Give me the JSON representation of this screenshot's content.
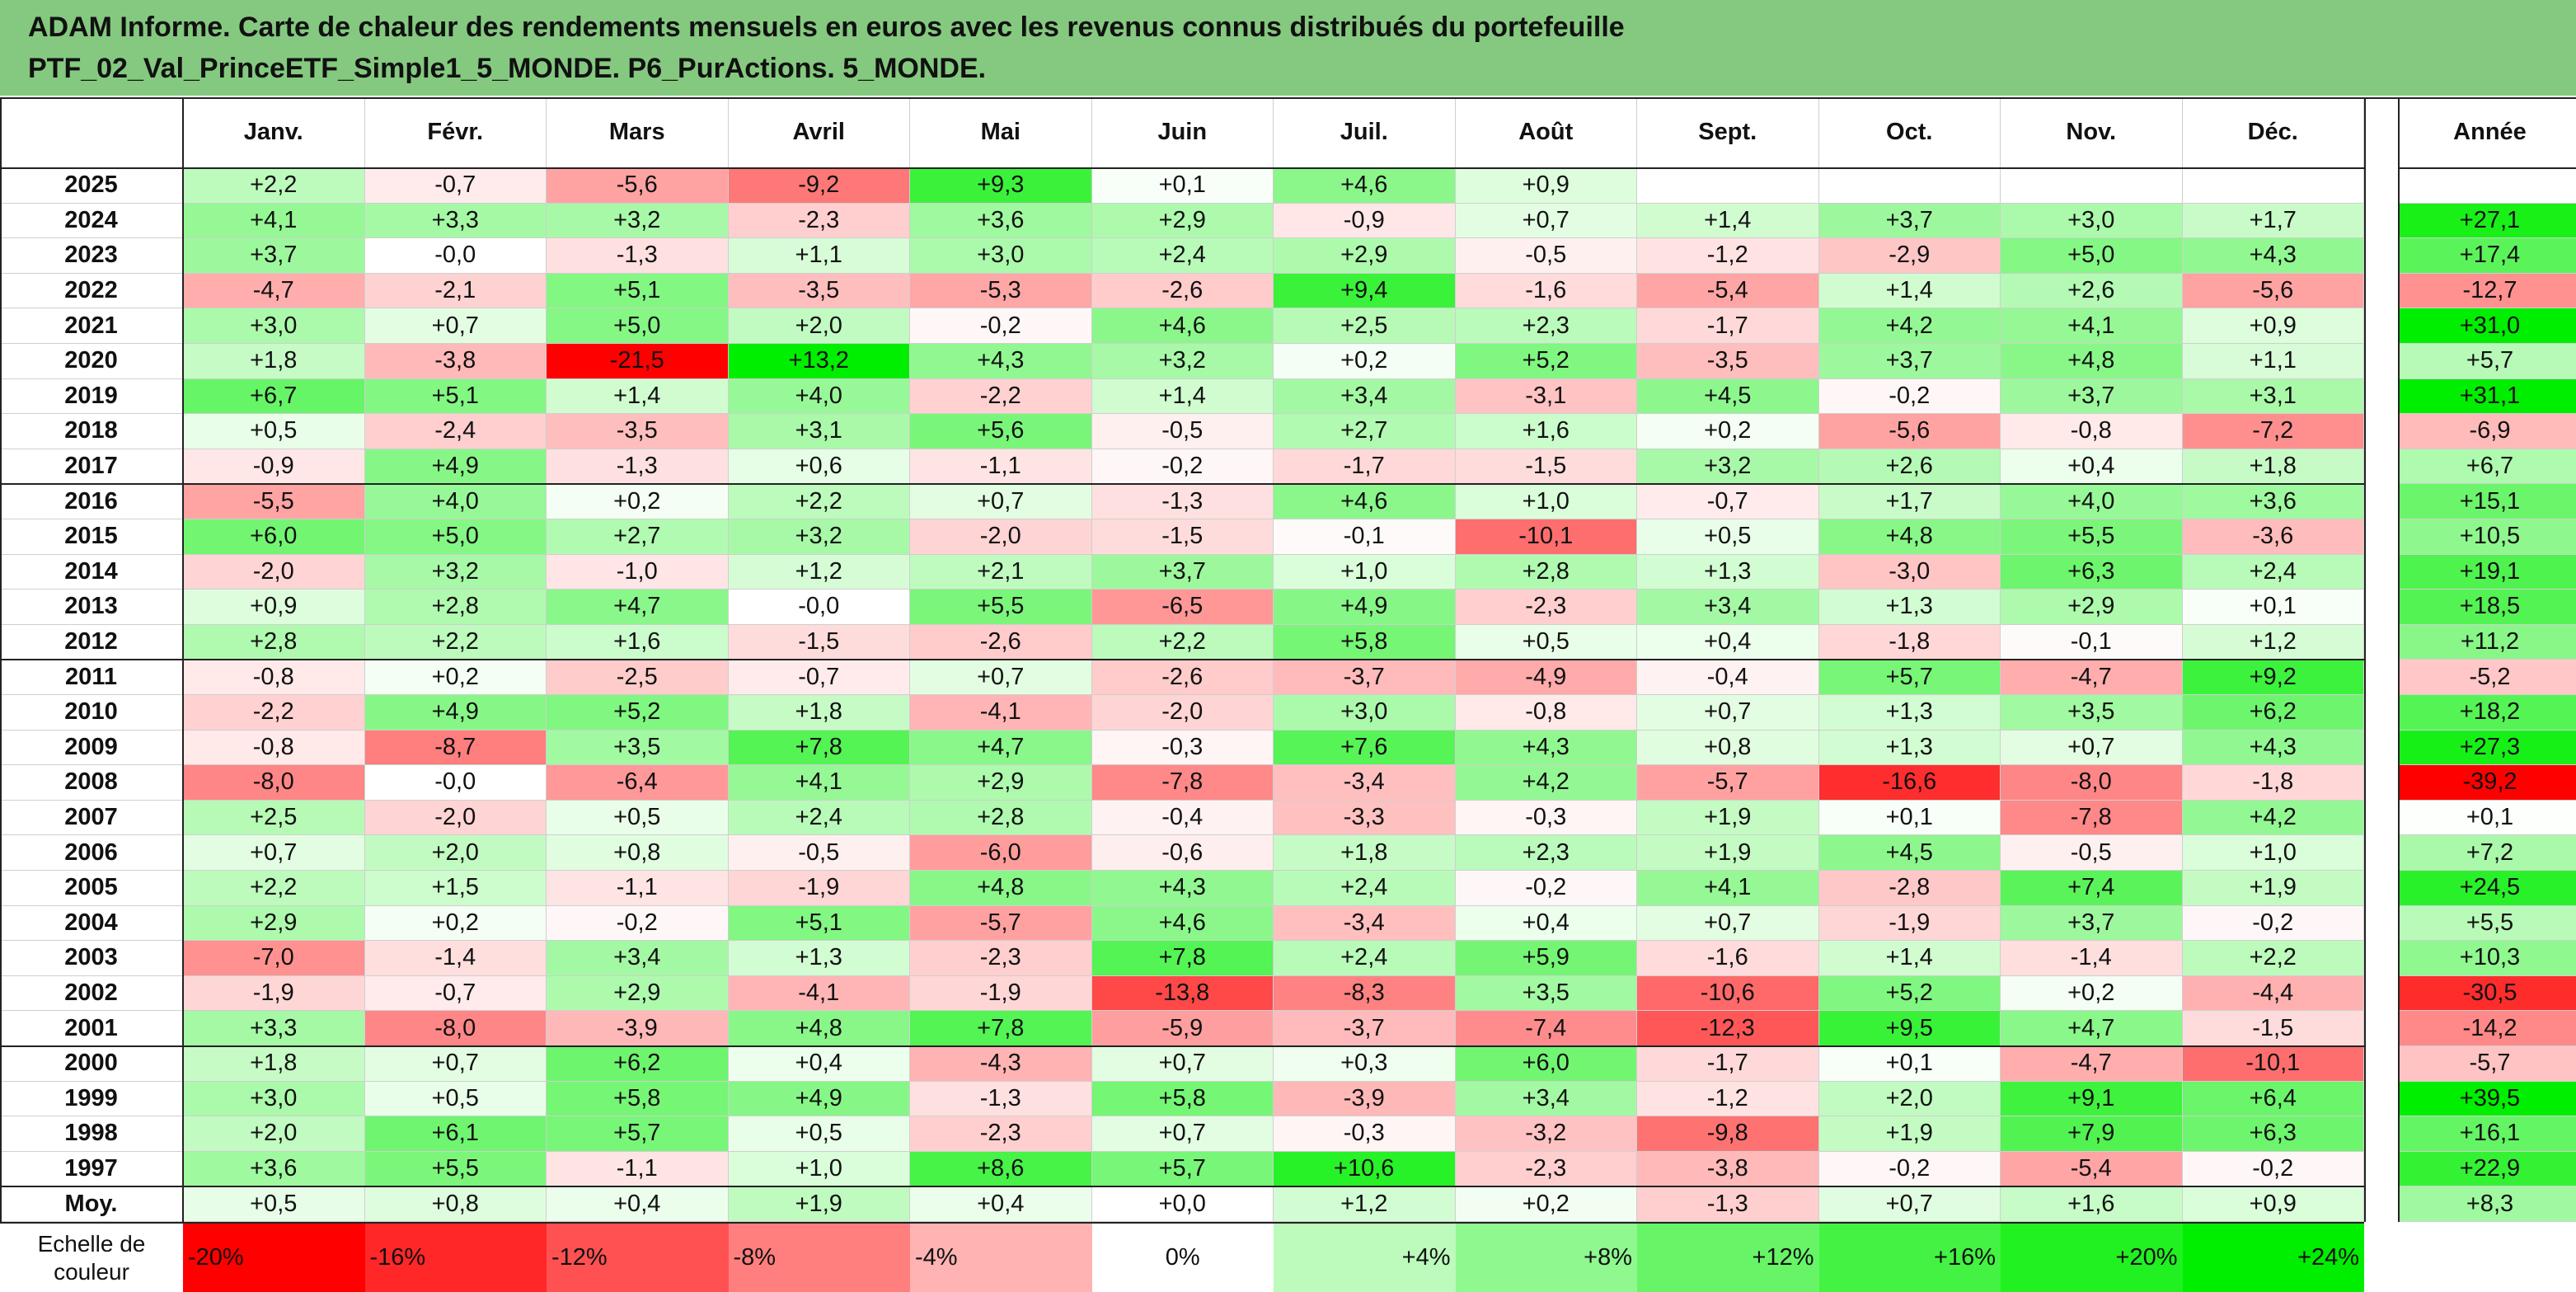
{
  "title_line1": "ADAM Informe. Carte de chaleur des rendements mensuels en euros avec les revenus connus distribués du portefeuille",
  "title_line2": "PTF_02_Val_PrinceETF_Simple1_5_MONDE. P6_PurActions. 5_MONDE.",
  "chart_data": {
    "type": "heatmap",
    "corner_label": "",
    "columns": [
      "Janv.",
      "Févr.",
      "Mars",
      "Avril",
      "Mai",
      "Juin",
      "Juil.",
      "Août",
      "Sept.",
      "Oct.",
      "Nov.",
      "Déc."
    ],
    "annual_header": "Année",
    "rows": [
      {
        "year": "2025",
        "months": [
          "+2,2",
          "-0,7",
          "-5,6",
          "-9,2",
          "+9,3",
          "+0,1",
          "+4,6",
          "+0,9",
          "",
          "",
          "",
          ""
        ],
        "annual": ""
      },
      {
        "year": "2024",
        "months": [
          "+4,1",
          "+3,3",
          "+3,2",
          "-2,3",
          "+3,6",
          "+2,9",
          "-0,9",
          "+0,7",
          "+1,4",
          "+3,7",
          "+3,0",
          "+1,7"
        ],
        "annual": "+27,1"
      },
      {
        "year": "2023",
        "months": [
          "+3,7",
          "-0,0",
          "-1,3",
          "+1,1",
          "+3,0",
          "+2,4",
          "+2,9",
          "-0,5",
          "-1,2",
          "-2,9",
          "+5,0",
          "+4,3"
        ],
        "annual": "+17,4"
      },
      {
        "year": "2022",
        "months": [
          "-4,7",
          "-2,1",
          "+5,1",
          "-3,5",
          "-5,3",
          "-2,6",
          "+9,4",
          "-1,6",
          "-5,4",
          "+1,4",
          "+2,6",
          "-5,6"
        ],
        "annual": "-12,7"
      },
      {
        "year": "2021",
        "months": [
          "+3,0",
          "+0,7",
          "+5,0",
          "+2,0",
          "-0,2",
          "+4,6",
          "+2,5",
          "+2,3",
          "-1,7",
          "+4,2",
          "+4,1",
          "+0,9"
        ],
        "annual": "+31,0"
      },
      {
        "year": "2020",
        "months": [
          "+1,8",
          "-3,8",
          "-21,5",
          "+13,2",
          "+4,3",
          "+3,2",
          "+0,2",
          "+5,2",
          "-3,5",
          "+3,7",
          "+4,8",
          "+1,1"
        ],
        "annual": "+5,7"
      },
      {
        "year": "2019",
        "months": [
          "+6,7",
          "+5,1",
          "+1,4",
          "+4,0",
          "-2,2",
          "+1,4",
          "+3,4",
          "-3,1",
          "+4,5",
          "-0,2",
          "+3,7",
          "+3,1"
        ],
        "annual": "+31,1"
      },
      {
        "year": "2018",
        "months": [
          "+0,5",
          "-2,4",
          "-3,5",
          "+3,1",
          "+5,6",
          "-0,5",
          "+2,7",
          "+1,6",
          "+0,2",
          "-5,6",
          "-0,8",
          "-7,2"
        ],
        "annual": "-6,9"
      },
      {
        "year": "2017",
        "months": [
          "-0,9",
          "+4,9",
          "-1,3",
          "+0,6",
          "-1,1",
          "-0,2",
          "-1,7",
          "-1,5",
          "+3,2",
          "+2,6",
          "+0,4",
          "+1,8"
        ],
        "annual": "+6,7"
      },
      {
        "year": "2016",
        "months": [
          "-5,5",
          "+4,0",
          "+0,2",
          "+2,2",
          "+0,7",
          "-1,3",
          "+4,6",
          "+1,0",
          "-0,7",
          "+1,7",
          "+4,0",
          "+3,6"
        ],
        "annual": "+15,1"
      },
      {
        "year": "2015",
        "months": [
          "+6,0",
          "+5,0",
          "+2,7",
          "+3,2",
          "-2,0",
          "-1,5",
          "-0,1",
          "-10,1",
          "+0,5",
          "+4,8",
          "+5,5",
          "-3,6"
        ],
        "annual": "+10,5"
      },
      {
        "year": "2014",
        "months": [
          "-2,0",
          "+3,2",
          "-1,0",
          "+1,2",
          "+2,1",
          "+3,7",
          "+1,0",
          "+2,8",
          "+1,3",
          "-3,0",
          "+6,3",
          "+2,4"
        ],
        "annual": "+19,1"
      },
      {
        "year": "2013",
        "months": [
          "+0,9",
          "+2,8",
          "+4,7",
          "-0,0",
          "+5,5",
          "-6,5",
          "+4,9",
          "-2,3",
          "+3,4",
          "+1,3",
          "+2,9",
          "+0,1"
        ],
        "annual": "+18,5"
      },
      {
        "year": "2012",
        "months": [
          "+2,8",
          "+2,2",
          "+1,6",
          "-1,5",
          "-2,6",
          "+2,2",
          "+5,8",
          "+0,5",
          "+0,4",
          "-1,8",
          "-0,1",
          "+1,2"
        ],
        "annual": "+11,2"
      },
      {
        "year": "2011",
        "months": [
          "-0,8",
          "+0,2",
          "-2,5",
          "-0,7",
          "+0,7",
          "-2,6",
          "-3,7",
          "-4,9",
          "-0,4",
          "+5,7",
          "-4,7",
          "+9,2"
        ],
        "annual": "-5,2"
      },
      {
        "year": "2010",
        "months": [
          "-2,2",
          "+4,9",
          "+5,2",
          "+1,8",
          "-4,1",
          "-2,0",
          "+3,0",
          "-0,8",
          "+0,7",
          "+1,3",
          "+3,5",
          "+6,2"
        ],
        "annual": "+18,2"
      },
      {
        "year": "2009",
        "months": [
          "-0,8",
          "-8,7",
          "+3,5",
          "+7,8",
          "+4,7",
          "-0,3",
          "+7,6",
          "+4,3",
          "+0,8",
          "+1,3",
          "+0,7",
          "+4,3"
        ],
        "annual": "+27,3"
      },
      {
        "year": "2008",
        "months": [
          "-8,0",
          "-0,0",
          "-6,4",
          "+4,1",
          "+2,9",
          "-7,8",
          "-3,4",
          "+4,2",
          "-5,7",
          "-16,6",
          "-8,0",
          "-1,8"
        ],
        "annual": "-39,2"
      },
      {
        "year": "2007",
        "months": [
          "+2,5",
          "-2,0",
          "+0,5",
          "+2,4",
          "+2,8",
          "-0,4",
          "-3,3",
          "-0,3",
          "+1,9",
          "+0,1",
          "-7,8",
          "+4,2"
        ],
        "annual": "+0,1"
      },
      {
        "year": "2006",
        "months": [
          "+0,7",
          "+2,0",
          "+0,8",
          "-0,5",
          "-6,0",
          "-0,6",
          "+1,8",
          "+2,3",
          "+1,9",
          "+4,5",
          "-0,5",
          "+1,0"
        ],
        "annual": "+7,2"
      },
      {
        "year": "2005",
        "months": [
          "+2,2",
          "+1,5",
          "-1,1",
          "-1,9",
          "+4,8",
          "+4,3",
          "+2,4",
          "-0,2",
          "+4,1",
          "-2,8",
          "+7,4",
          "+1,9"
        ],
        "annual": "+24,5"
      },
      {
        "year": "2004",
        "months": [
          "+2,9",
          "+0,2",
          "-0,2",
          "+5,1",
          "-5,7",
          "+4,6",
          "-3,4",
          "+0,4",
          "+0,7",
          "-1,9",
          "+3,7",
          "-0,2"
        ],
        "annual": "+5,5"
      },
      {
        "year": "2003",
        "months": [
          "-7,0",
          "-1,4",
          "+3,4",
          "+1,3",
          "-2,3",
          "+7,8",
          "+2,4",
          "+5,9",
          "-1,6",
          "+1,4",
          "-1,4",
          "+2,2"
        ],
        "annual": "+10,3"
      },
      {
        "year": "2002",
        "months": [
          "-1,9",
          "-0,7",
          "+2,9",
          "-4,1",
          "-1,9",
          "-13,8",
          "-8,3",
          "+3,5",
          "-10,6",
          "+5,2",
          "+0,2",
          "-4,4"
        ],
        "annual": "-30,5"
      },
      {
        "year": "2001",
        "months": [
          "+3,3",
          "-8,0",
          "-3,9",
          "+4,8",
          "+7,8",
          "-5,9",
          "-3,7",
          "-7,4",
          "-12,3",
          "+9,5",
          "+4,7",
          "-1,5"
        ],
        "annual": "-14,2"
      },
      {
        "year": "2000",
        "months": [
          "+1,8",
          "+0,7",
          "+6,2",
          "+0,4",
          "-4,3",
          "+0,7",
          "+0,3",
          "+6,0",
          "-1,7",
          "+0,1",
          "-4,7",
          "-10,1"
        ],
        "annual": "-5,7"
      },
      {
        "year": "1999",
        "months": [
          "+3,0",
          "+0,5",
          "+5,8",
          "+4,9",
          "-1,3",
          "+5,8",
          "-3,9",
          "+3,4",
          "-1,2",
          "+2,0",
          "+9,1",
          "+6,4"
        ],
        "annual": "+39,5"
      },
      {
        "year": "1998",
        "months": [
          "+2,0",
          "+6,1",
          "+5,7",
          "+0,5",
          "-2,3",
          "+0,7",
          "-0,3",
          "-3,2",
          "-9,8",
          "+1,9",
          "+7,9",
          "+6,3"
        ],
        "annual": "+16,1"
      },
      {
        "year": "1997",
        "months": [
          "+3,6",
          "+5,5",
          "-1,1",
          "+1,0",
          "+8,6",
          "+5,7",
          "+10,6",
          "-2,3",
          "-3,8",
          "-0,2",
          "-5,4",
          "-0,2"
        ],
        "annual": "+22,9"
      }
    ],
    "average_row": {
      "label": "Moy.",
      "months": [
        "+0,5",
        "+0,8",
        "+0,4",
        "+1,9",
        "+0,4",
        "+0,0",
        "+1,2",
        "+0,2",
        "-1,3",
        "+0,7",
        "+1,6",
        "+0,9"
      ],
      "annual": "+8,3"
    },
    "color_scale": {
      "label_line1": "Echelle de",
      "label_line2": "couleur",
      "stops": [
        "-20%",
        "-16%",
        "-12%",
        "-8%",
        "-4%",
        "0%",
        "+4%",
        "+8%",
        "+12%",
        "+16%",
        "+20%",
        "+24%"
      ],
      "stop_values": [
        -20,
        -16,
        -12,
        -8,
        -4,
        0,
        4,
        8,
        12,
        16,
        20,
        24
      ],
      "negative_color": "#ff0000",
      "positive_color": "#00ee00",
      "neutral_color": "#ffffff"
    }
  }
}
